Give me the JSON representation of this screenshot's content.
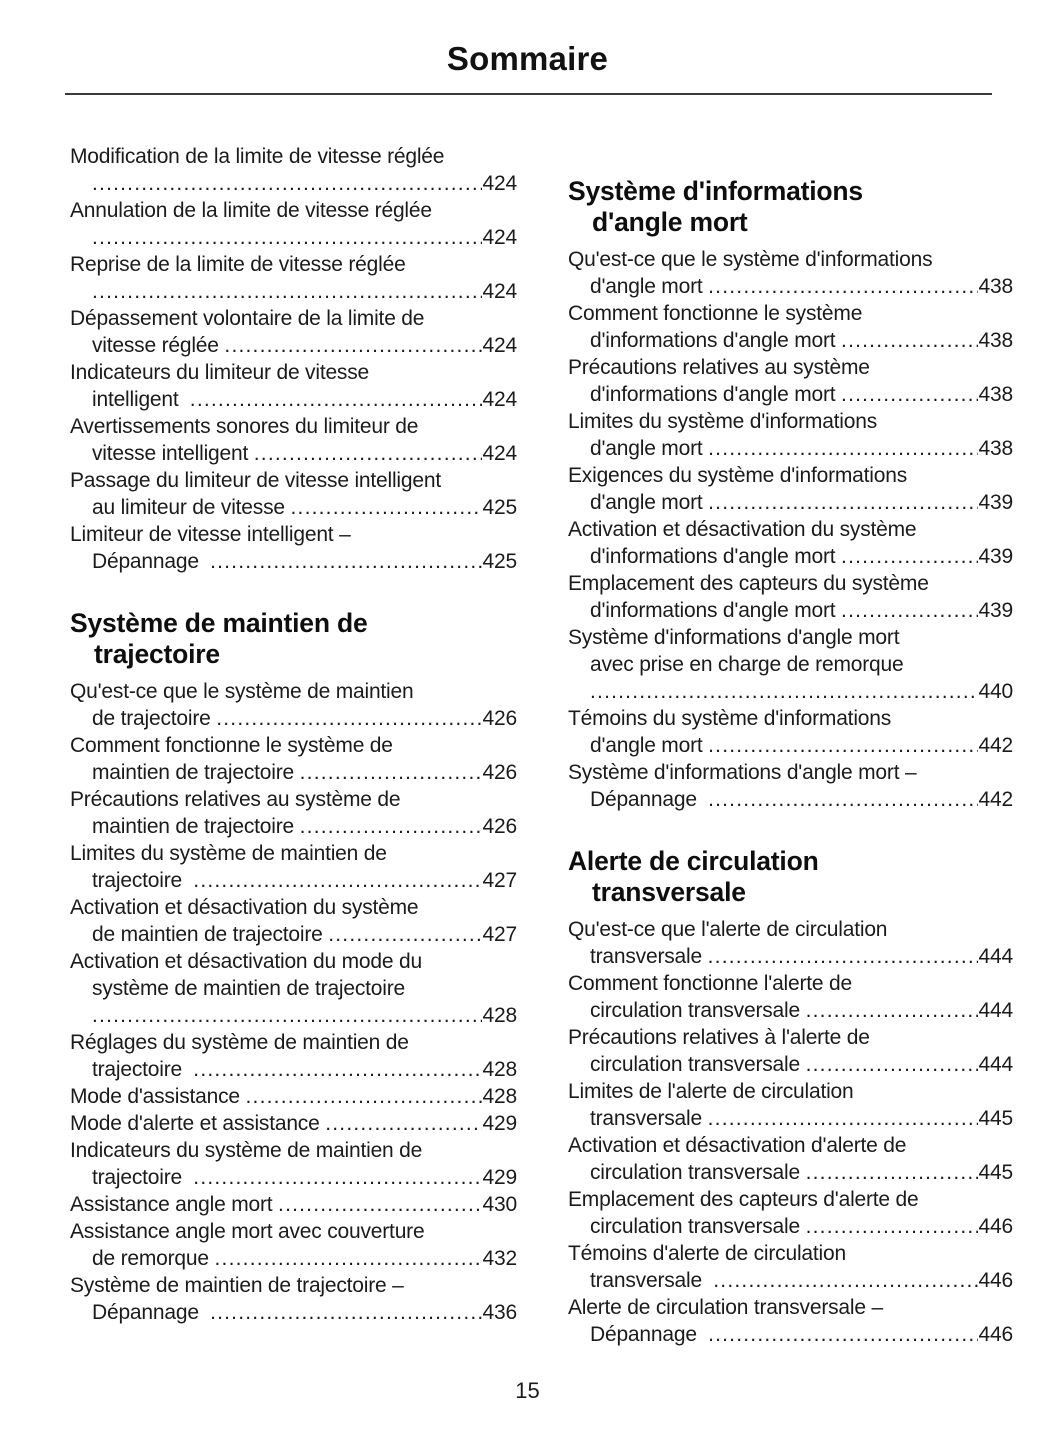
{
  "page": {
    "title": "Sommaire",
    "number": "15"
  },
  "colors": {
    "text": "#1b1b1b",
    "rule": "#3c3c3c"
  },
  "columns": [
    {
      "sections": [
        {
          "heading_lines": null,
          "entries": [
            {
              "lines": [
                "Modification de la limite de vitesse réglée",
                ""
              ],
              "page": "424"
            },
            {
              "lines": [
                "Annulation de la limite de vitesse réglée",
                ""
              ],
              "page": "424"
            },
            {
              "lines": [
                "Reprise de la limite de vitesse réglée",
                ""
              ],
              "page": "424"
            },
            {
              "lines": [
                "Dépassement volontaire de la limite de",
                "vitesse réglée "
              ],
              "page": "424"
            },
            {
              "lines": [
                "Indicateurs du limiteur de vitesse",
                "intelligent  "
              ],
              "page": "424"
            },
            {
              "lines": [
                "Avertissements sonores du limiteur de",
                "vitesse intelligent "
              ],
              "page": "424"
            },
            {
              "lines": [
                "Passage du limiteur de vitesse intelligent",
                "au limiteur de vitesse "
              ],
              "page": "425"
            },
            {
              "lines": [
                "Limiteur de vitesse intelligent –",
                "Dépannage  "
              ],
              "page": "425"
            }
          ]
        },
        {
          "heading_lines": [
            "Système de maintien de",
            "trajectoire"
          ],
          "entries": [
            {
              "lines": [
                "Qu'est-ce que le système de maintien",
                "de trajectoire "
              ],
              "page": "426"
            },
            {
              "lines": [
                "Comment fonctionne le système de",
                "maintien de trajectoire "
              ],
              "page": "426"
            },
            {
              "lines": [
                "Précautions relatives au système de",
                "maintien de trajectoire "
              ],
              "page": "426"
            },
            {
              "lines": [
                "Limites du système de maintien de",
                "trajectoire  "
              ],
              "page": "427"
            },
            {
              "lines": [
                "Activation et désactivation du système",
                "de maintien de trajectoire "
              ],
              "page": "427"
            },
            {
              "lines": [
                "Activation et désactivation du mode du",
                "système de maintien de trajectoire",
                ""
              ],
              "page": "428"
            },
            {
              "lines": [
                "Réglages du système de maintien de",
                "trajectoire  "
              ],
              "page": "428"
            },
            {
              "lines": [
                "Mode d'assistance "
              ],
              "page": "428"
            },
            {
              "lines": [
                "Mode d'alerte et assistance "
              ],
              "page": "429"
            },
            {
              "lines": [
                "Indicateurs du système de maintien de",
                "trajectoire  "
              ],
              "page": "429"
            },
            {
              "lines": [
                "Assistance angle mort "
              ],
              "page": "430"
            },
            {
              "lines": [
                "Assistance angle mort avec couverture",
                "de remorque "
              ],
              "page": "432"
            },
            {
              "lines": [
                "Système de maintien de trajectoire –",
                "Dépannage  "
              ],
              "page": "436"
            }
          ]
        }
      ]
    },
    {
      "sections": [
        {
          "heading_lines": [
            "Système d'informations",
            "d'angle mort"
          ],
          "entries": [
            {
              "lines": [
                "Qu'est-ce que le système d'informations",
                "d'angle mort "
              ],
              "page": "438"
            },
            {
              "lines": [
                "Comment fonctionne le système",
                "d'informations d'angle mort "
              ],
              "page": "438"
            },
            {
              "lines": [
                "Précautions relatives au système",
                "d'informations d'angle mort "
              ],
              "page": "438"
            },
            {
              "lines": [
                "Limites du système d'informations",
                "d'angle mort "
              ],
              "page": "438"
            },
            {
              "lines": [
                "Exigences du système d'informations",
                "d'angle mort "
              ],
              "page": "439"
            },
            {
              "lines": [
                "Activation et désactivation du système",
                "d'informations d'angle mort "
              ],
              "page": "439"
            },
            {
              "lines": [
                "Emplacement des capteurs du système",
                "d'informations d'angle mort "
              ],
              "page": "439"
            },
            {
              "lines": [
                "Système d'informations d'angle mort",
                "avec prise en charge de remorque",
                ""
              ],
              "page": "440"
            },
            {
              "lines": [
                "Témoins du système d'informations",
                "d'angle mort "
              ],
              "page": "442"
            },
            {
              "lines": [
                "Système d'informations d'angle mort –",
                "Dépannage  "
              ],
              "page": "442"
            }
          ]
        },
        {
          "heading_lines": [
            "Alerte de circulation",
            "transversale"
          ],
          "entries": [
            {
              "lines": [
                "Qu'est-ce que l'alerte de circulation",
                "transversale "
              ],
              "page": "444"
            },
            {
              "lines": [
                "Comment fonctionne l'alerte de",
                "circulation transversale "
              ],
              "page": "444"
            },
            {
              "lines": [
                "Précautions relatives à l'alerte de",
                "circulation transversale "
              ],
              "page": "444"
            },
            {
              "lines": [
                "Limites de l'alerte de circulation",
                "transversale "
              ],
              "page": "445"
            },
            {
              "lines": [
                "Activation et désactivation d'alerte de",
                "circulation transversale "
              ],
              "page": "445"
            },
            {
              "lines": [
                "Emplacement des capteurs d'alerte de",
                "circulation transversale "
              ],
              "page": "446"
            },
            {
              "lines": [
                "Témoins d'alerte de circulation",
                "transversale  "
              ],
              "page": "446"
            },
            {
              "lines": [
                "Alerte de circulation transversale –",
                "Dépannage  "
              ],
              "page": "446"
            }
          ]
        }
      ]
    }
  ]
}
